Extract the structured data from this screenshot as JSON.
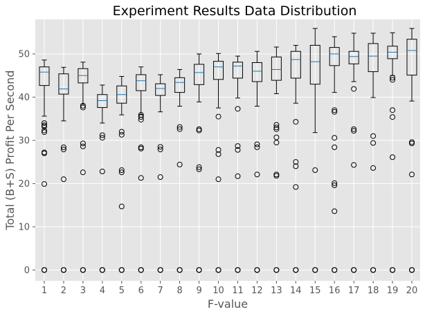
{
  "chart_data": {
    "type": "box",
    "title": "Experiment Results Data Distribution",
    "xlabel": "F-value",
    "ylabel": "Total (B+S) Profit Per Second",
    "ylim": [
      -2.5,
      58
    ],
    "yticks": [
      0,
      10,
      20,
      30,
      40,
      50
    ],
    "grid": true,
    "style": "ggplot",
    "colors": {
      "background": "#e5e5e5",
      "grid": "#ffffff",
      "box": "#000000",
      "median": "#1f77b4",
      "tick_text": "#555555"
    },
    "boxes": [
      {
        "label": "1",
        "q1": 42.7,
        "median": 45.8,
        "q3": 47.0,
        "whislo": 35.6,
        "whishi": 48.6,
        "fliers": [
          34.0,
          33.5,
          33.2,
          32.3,
          31.9,
          27.2,
          27.0,
          19.9,
          0,
          0,
          0
        ]
      },
      {
        "label": "2",
        "q1": 40.7,
        "median": 41.9,
        "q3": 45.4,
        "whislo": 34.5,
        "whishi": 46.9,
        "fliers": [
          28.4,
          27.9,
          21.0,
          0,
          0,
          0
        ]
      },
      {
        "label": "3",
        "q1": 43.3,
        "median": 45.0,
        "q3": 46.6,
        "whislo": 38.4,
        "whishi": 48.1,
        "fliers": [
          38.0,
          37.6,
          29.3,
          28.6,
          22.6,
          0,
          0,
          0
        ]
      },
      {
        "label": "4",
        "q1": 37.6,
        "median": 39.2,
        "q3": 40.6,
        "whislo": 34.0,
        "whishi": 42.8,
        "fliers": [
          31.2,
          30.6,
          22.8,
          0,
          0,
          0
        ]
      },
      {
        "label": "5",
        "q1": 38.6,
        "median": 40.6,
        "q3": 42.6,
        "whislo": 35.9,
        "whishi": 44.8,
        "fliers": [
          32.0,
          31.3,
          23.1,
          22.6,
          14.7,
          0,
          0,
          0
        ]
      },
      {
        "label": "6",
        "q1": 41.5,
        "median": 43.8,
        "q3": 45.2,
        "whislo": 36.0,
        "whishi": 47.0,
        "fliers": [
          35.9,
          35.4,
          34.8,
          28.4,
          28.1,
          21.3,
          0,
          0,
          0
        ]
      },
      {
        "label": "7",
        "q1": 40.4,
        "median": 42.0,
        "q3": 43.1,
        "whislo": 36.6,
        "whishi": 45.2,
        "fliers": [
          28.5,
          27.9,
          21.5,
          0,
          0,
          0
        ]
      },
      {
        "label": "8",
        "q1": 41.1,
        "median": 43.4,
        "q3": 44.5,
        "whislo": 37.9,
        "whishi": 46.4,
        "fliers": [
          33.1,
          32.6,
          24.4,
          0,
          0,
          0
        ]
      },
      {
        "label": "9",
        "q1": 42.9,
        "median": 45.7,
        "q3": 47.6,
        "whislo": 38.9,
        "whishi": 50.0,
        "fliers": [
          32.6,
          32.3,
          23.8,
          23.3,
          0,
          0,
          0
        ]
      },
      {
        "label": "10",
        "q1": 44.1,
        "median": 47.0,
        "q3": 48.3,
        "whislo": 37.5,
        "whishi": 50.1,
        "fliers": [
          35.5,
          27.8,
          26.8,
          21.0,
          0,
          0,
          0
        ]
      },
      {
        "label": "11",
        "q1": 44.4,
        "median": 47.2,
        "q3": 48.1,
        "whislo": 39.8,
        "whishi": 49.5,
        "fliers": [
          37.3,
          28.7,
          27.8,
          21.7,
          0,
          0,
          0
        ]
      },
      {
        "label": "12",
        "q1": 43.6,
        "median": 46.0,
        "q3": 48.0,
        "whislo": 37.9,
        "whishi": 50.6,
        "fliers": [
          29.1,
          28.4,
          22.1,
          0,
          0,
          0
        ]
      },
      {
        "label": "13",
        "q1": 43.9,
        "median": 46.4,
        "q3": 49.3,
        "whislo": 40.8,
        "whishi": 51.6,
        "fliers": [
          33.6,
          33.0,
          32.6,
          30.7,
          29.5,
          22.1,
          21.8,
          0,
          0,
          0
        ]
      },
      {
        "label": "14",
        "q1": 44.4,
        "median": 48.7,
        "q3": 50.6,
        "whislo": 38.6,
        "whishi": 52.0,
        "fliers": [
          34.3,
          25.0,
          24.0,
          19.2,
          0,
          0,
          0
        ]
      },
      {
        "label": "15",
        "q1": 43.0,
        "median": 48.2,
        "q3": 52.0,
        "whislo": 31.8,
        "whishi": 55.9,
        "fliers": [
          23.1,
          0,
          0,
          0
        ]
      },
      {
        "label": "16",
        "q1": 47.3,
        "median": 50.0,
        "q3": 51.5,
        "whislo": 41.1,
        "whishi": 54.0,
        "fliers": [
          37.0,
          36.6,
          30.6,
          28.4,
          20.1,
          19.6,
          13.6,
          0,
          0,
          0
        ]
      },
      {
        "label": "17",
        "q1": 47.7,
        "median": 49.4,
        "q3": 50.6,
        "whislo": 43.6,
        "whishi": 54.8,
        "fliers": [
          41.9,
          32.6,
          32.2,
          24.3,
          0,
          0,
          0
        ]
      },
      {
        "label": "18",
        "q1": 45.9,
        "median": 49.5,
        "q3": 52.4,
        "whislo": 39.9,
        "whishi": 54.8,
        "fliers": [
          31.0,
          29.4,
          23.6,
          0,
          0,
          0
        ]
      },
      {
        "label": "19",
        "q1": 48.9,
        "median": 50.4,
        "q3": 51.8,
        "whislo": 45.0,
        "whishi": 54.9,
        "fliers": [
          44.5,
          44.0,
          37.0,
          35.4,
          26.1,
          0,
          0,
          0
        ]
      },
      {
        "label": "20",
        "q1": 45.1,
        "median": 50.8,
        "q3": 53.4,
        "whislo": 39.1,
        "whishi": 55.9,
        "fliers": [
          29.6,
          29.3,
          22.1,
          0,
          0,
          0
        ]
      }
    ]
  }
}
